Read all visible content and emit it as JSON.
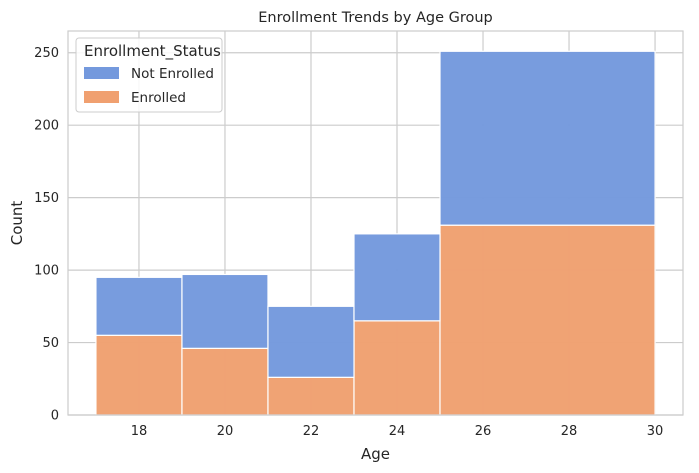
{
  "chart_data": {
    "type": "bar",
    "stacked": true,
    "title": "Enrollment Trends by Age Group",
    "xlabel": "Age",
    "ylabel": "Count",
    "xlim": [
      16.35,
      30.65
    ],
    "ylim": [
      0,
      265
    ],
    "xticks": [
      "18",
      "20",
      "22",
      "24",
      "26",
      "28",
      "30"
    ],
    "yticks": [
      "0",
      "50",
      "100",
      "150",
      "200",
      "250"
    ],
    "grid": true,
    "bins": [
      {
        "x0": 17,
        "x1": 19
      },
      {
        "x0": 19,
        "x1": 21
      },
      {
        "x0": 21,
        "x1": 23
      },
      {
        "x0": 23,
        "x1": 25
      },
      {
        "x0": 25,
        "x1": 30
      }
    ],
    "legend": {
      "title": "Enrollment_Status",
      "position": "top-left"
    },
    "series": [
      {
        "name": "Enrolled",
        "color": "#f0a070",
        "values": [
          55,
          46,
          26,
          65,
          131
        ]
      },
      {
        "name": "Not Enrolled",
        "color": "#7499dd",
        "values": [
          40,
          51,
          49,
          60,
          120
        ]
      }
    ],
    "legend_order": [
      "Not Enrolled",
      "Enrolled"
    ]
  }
}
